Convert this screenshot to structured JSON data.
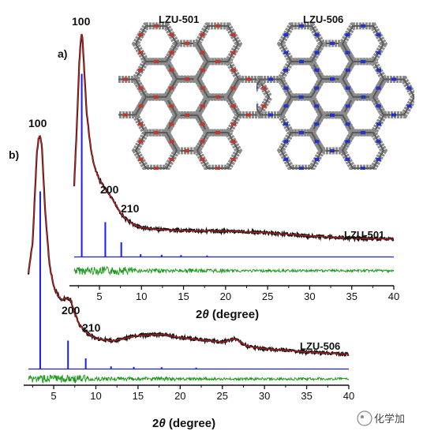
{
  "figure": {
    "watermark": "化学加",
    "panel_a_label": "a)",
    "panel_b_label": "b)",
    "structure_a_title": "LZU-501",
    "structure_b_title": "LZU-506"
  },
  "colors": {
    "experimental": "#111111",
    "fit": "#b22020",
    "simulated": "#1a1aff",
    "difference": "#1e9a1e",
    "pore_red": "#c0392b",
    "pore_blue": "#2233cc",
    "framework_gray": "#8c8c8c"
  },
  "chart_data": [
    {
      "type": "line",
      "panel": "a",
      "series_label": "LZU-501",
      "xlabel_prefix": "2",
      "xlabel_theta": "θ",
      "xlabel_suffix": " (degree)",
      "xlim": [
        2,
        40
      ],
      "xticks": [
        5,
        10,
        15,
        20,
        25,
        30,
        35,
        40
      ],
      "xtick_labels": [
        "5",
        "10",
        "15",
        "20",
        "25",
        "30",
        "35",
        "40"
      ],
      "grid": false,
      "peaks": [
        {
          "label": "100",
          "x": 2.9
        },
        {
          "label": "200",
          "x": 5.6
        },
        {
          "label": "210",
          "x": 7.5
        }
      ],
      "experimental_profile": {
        "x": [
          2.0,
          2.3,
          2.6,
          2.8,
          2.9,
          3.0,
          3.2,
          3.5,
          4.0,
          4.5,
          5.0,
          5.5,
          6.0,
          6.5,
          7.0,
          7.5,
          8.0,
          9.0,
          10.0,
          12.0,
          15.0,
          20.0,
          25.0,
          30.0,
          35.0,
          40.0
        ],
        "y": [
          0.28,
          0.55,
          0.86,
          0.98,
          1.0,
          0.97,
          0.82,
          0.62,
          0.45,
          0.36,
          0.31,
          0.28,
          0.25,
          0.22,
          0.19,
          0.155,
          0.13,
          0.1,
          0.085,
          0.075,
          0.07,
          0.068,
          0.06,
          0.045,
          0.035,
          0.03
        ]
      },
      "simulated_peaks": {
        "x": [
          2.9,
          5.7,
          7.6,
          9.9,
          12.4,
          14.7,
          17.8
        ],
        "y": [
          1.0,
          0.19,
          0.08,
          0.015,
          0.012,
          0.01,
          0.008
        ]
      }
    },
    {
      "type": "line",
      "panel": "b",
      "series_label": "LZU-506",
      "xlabel_prefix": "2",
      "xlabel_theta": "θ",
      "xlabel_suffix": " (degree)",
      "xlim": [
        2,
        40
      ],
      "xticks": [
        5,
        10,
        15,
        20,
        25,
        30,
        35,
        40
      ],
      "xtick_labels": [
        "5",
        "10",
        "15",
        "20",
        "25",
        "30",
        "35",
        "40"
      ],
      "grid": false,
      "peaks": [
        {
          "label": "100",
          "x": 3.4
        },
        {
          "label": "200",
          "x": 6.8
        },
        {
          "label": "210",
          "x": 8.8
        }
      ],
      "experimental_profile": {
        "x": [
          2.0,
          2.5,
          3.0,
          3.2,
          3.4,
          3.6,
          3.8,
          4.0,
          4.5,
          5.0,
          5.5,
          6.0,
          6.5,
          7.0,
          7.5,
          8.0,
          9.0,
          10.0,
          12.0,
          15.0,
          18.0,
          20.0,
          25.0,
          26.5,
          28.0,
          30.0,
          35.0,
          40.0
        ],
        "y": [
          0.38,
          0.52,
          0.92,
          0.99,
          1.0,
          0.95,
          0.8,
          0.65,
          0.42,
          0.32,
          0.28,
          0.26,
          0.27,
          0.26,
          0.2,
          0.15,
          0.11,
          0.085,
          0.075,
          0.1,
          0.105,
          0.09,
          0.07,
          0.085,
          0.05,
          0.04,
          0.025,
          0.015
        ]
      },
      "simulated_peaks": {
        "x": [
          3.4,
          6.7,
          8.8,
          11.8,
          14.5,
          17.8,
          21.9
        ],
        "y": [
          1.0,
          0.16,
          0.06,
          0.015,
          0.012,
          0.01,
          0.008
        ]
      }
    }
  ]
}
